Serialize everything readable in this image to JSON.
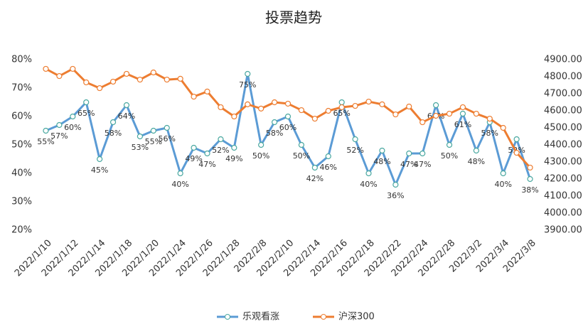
{
  "chart_data": {
    "type": "line",
    "title": "投票趋势",
    "categories": [
      "2022/1/10",
      null,
      "2022/1/12",
      null,
      "2022/1/14",
      null,
      "2022/1/18",
      null,
      "2022/1/20",
      null,
      "2022/1/24",
      null,
      "2022/1/26",
      null,
      "2022/1/28",
      null,
      "2022/2/8",
      null,
      "2022/2/10",
      null,
      "2022/2/14",
      null,
      "2022/2/16",
      null,
      "2022/2/18",
      null,
      "2022/2/22",
      null,
      "2022/2/24",
      null,
      "2022/2/28",
      null,
      "2022/3/2",
      null,
      "2022/3/4",
      null,
      "2022/3/8"
    ],
    "series": [
      {
        "name": "乐观看涨",
        "color": "#5b9bd5",
        "values": [
          55,
          57,
          60,
          65,
          45,
          58,
          64,
          53,
          55,
          56,
          40,
          49,
          47,
          52,
          49,
          75,
          50,
          58,
          60,
          50,
          42,
          46,
          65,
          52,
          40,
          48,
          36,
          47,
          47,
          64,
          50,
          61,
          48,
          58,
          40,
          52,
          38
        ],
        "value_labels": [
          "55%",
          "57%",
          "60%",
          "65%",
          "45%",
          "58%",
          "64%",
          "53%",
          "55%",
          "56%",
          "40%",
          "49%",
          "47%",
          "52%",
          "49%",
          "75%",
          "50%",
          "58%",
          "60%",
          "50%",
          "42%",
          "46%",
          "65%",
          "52%",
          "40%",
          "48%",
          "36%",
          "47%",
          "47%",
          "64%",
          "50%",
          "61%",
          "48%",
          "58%",
          "40%",
          "52%",
          "38%"
        ]
      },
      {
        "name": "沪深300",
        "color": "#ed7d31",
        "axis": "y2",
        "values": [
          4846,
          4804,
          4846,
          4767,
          4733,
          4771,
          4817,
          4783,
          4825,
          4783,
          4788,
          4683,
          4713,
          4621,
          4567,
          4638,
          4613,
          4650,
          4642,
          4604,
          4554,
          4600,
          4621,
          4629,
          4654,
          4638,
          4579,
          4625,
          4533,
          4571,
          4583,
          4621,
          4583,
          4554,
          4500,
          4354,
          4267
        ]
      }
    ],
    "ylim": [
      20,
      80
    ],
    "yticks": [
      {
        "value": 20,
        "label": "20%"
      },
      {
        "value": 30,
        "label": "30%"
      },
      {
        "value": 40,
        "label": "40%"
      },
      {
        "value": 50,
        "label": "50%"
      },
      {
        "value": 60,
        "label": "60%"
      },
      {
        "value": 70,
        "label": "70%"
      },
      {
        "value": 80,
        "label": "80%"
      }
    ],
    "y2lim": [
      3900,
      4900
    ],
    "y2ticks": [
      {
        "value": 3900,
        "label": "3900.00"
      },
      {
        "value": 4000,
        "label": "4000.00"
      },
      {
        "value": 4100,
        "label": "4100.00"
      },
      {
        "value": 4200,
        "label": "4200.00"
      },
      {
        "value": 4300,
        "label": "4300.00"
      },
      {
        "value": 4400,
        "label": "4400.00"
      },
      {
        "value": 4500,
        "label": "4500.00"
      },
      {
        "value": 4600,
        "label": "4600.00"
      },
      {
        "value": 4700,
        "label": "4700.00"
      },
      {
        "value": 4800,
        "label": "4800.00"
      },
      {
        "value": 4900,
        "label": "4900.00"
      }
    ],
    "grid": false,
    "legend": "bottom"
  }
}
